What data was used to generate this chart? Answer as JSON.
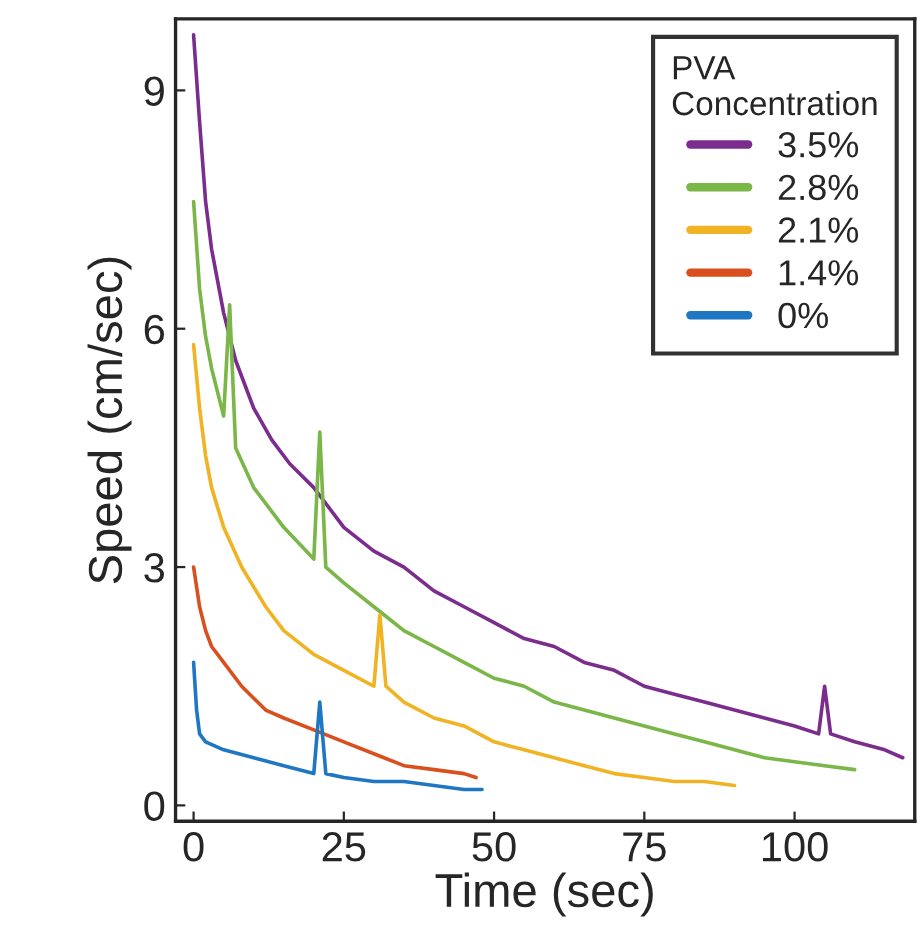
{
  "chart_data": {
    "type": "line",
    "xlabel": "Time (sec)",
    "ylabel": "Speed (cm/sec)",
    "legend_title": "PVA\nConcentration",
    "legend": "top right",
    "grid": false,
    "xlim": [
      -3,
      120
    ],
    "ylim": [
      -0.2,
      9.9
    ],
    "xticks": [
      0,
      25,
      50,
      75,
      100
    ],
    "yticks": [
      0,
      3,
      6,
      9
    ],
    "series": [
      {
        "name": "3.5%",
        "color": "#7b2d8e",
        "x": [
          0,
          1,
          2,
          3,
          5,
          7,
          10,
          13,
          16,
          20,
          25,
          30,
          35,
          40,
          45,
          50,
          55,
          60,
          65,
          70,
          75,
          80,
          85,
          90,
          95,
          100,
          104,
          105,
          106,
          110,
          115,
          118
        ],
        "values": [
          9.7,
          8.6,
          7.6,
          7.0,
          6.2,
          5.6,
          5.0,
          4.6,
          4.3,
          4.0,
          3.5,
          3.2,
          3.0,
          2.7,
          2.5,
          2.3,
          2.1,
          2.0,
          1.8,
          1.7,
          1.5,
          1.4,
          1.3,
          1.2,
          1.1,
          1.0,
          0.9,
          1.5,
          0.9,
          0.8,
          0.7,
          0.6
        ]
      },
      {
        "name": "2.8%",
        "color": "#7ab648",
        "x": [
          0,
          1,
          2,
          3,
          5,
          6,
          7,
          10,
          15,
          20,
          21,
          22,
          25,
          30,
          35,
          40,
          45,
          50,
          55,
          60,
          65,
          70,
          75,
          80,
          85,
          90,
          95,
          100,
          105,
          110
        ],
        "values": [
          7.6,
          6.5,
          5.9,
          5.5,
          4.9,
          6.3,
          4.5,
          4.0,
          3.5,
          3.1,
          4.7,
          3.0,
          2.8,
          2.5,
          2.2,
          2.0,
          1.8,
          1.6,
          1.5,
          1.3,
          1.2,
          1.1,
          1.0,
          0.9,
          0.8,
          0.7,
          0.6,
          0.55,
          0.5,
          0.45
        ]
      },
      {
        "name": "2.1%",
        "color": "#f0b323",
        "x": [
          0,
          1,
          2,
          3,
          5,
          8,
          12,
          15,
          20,
          25,
          30,
          31,
          32,
          35,
          40,
          45,
          50,
          55,
          60,
          65,
          70,
          75,
          80,
          85,
          90
        ],
        "values": [
          5.8,
          5.0,
          4.4,
          4.0,
          3.5,
          3.0,
          2.5,
          2.2,
          1.9,
          1.7,
          1.5,
          2.4,
          1.5,
          1.3,
          1.1,
          1.0,
          0.8,
          0.7,
          0.6,
          0.5,
          0.4,
          0.35,
          0.3,
          0.3,
          0.25
        ]
      },
      {
        "name": "1.4%",
        "color": "#d9501e",
        "x": [
          0,
          1,
          2,
          3,
          5,
          8,
          12,
          15,
          20,
          25,
          30,
          35,
          40,
          45,
          47
        ],
        "values": [
          3.0,
          2.5,
          2.2,
          2.0,
          1.8,
          1.5,
          1.2,
          1.1,
          0.95,
          0.8,
          0.65,
          0.5,
          0.45,
          0.4,
          0.35
        ]
      },
      {
        "name": "0%",
        "color": "#1f77c4",
        "x": [
          0,
          0.5,
          1,
          2,
          5,
          10,
          15,
          20,
          21,
          22,
          25,
          30,
          35,
          40,
          45,
          48
        ],
        "values": [
          1.8,
          1.2,
          0.9,
          0.8,
          0.7,
          0.6,
          0.5,
          0.4,
          1.3,
          0.4,
          0.35,
          0.3,
          0.3,
          0.25,
          0.2,
          0.2
        ]
      }
    ]
  }
}
